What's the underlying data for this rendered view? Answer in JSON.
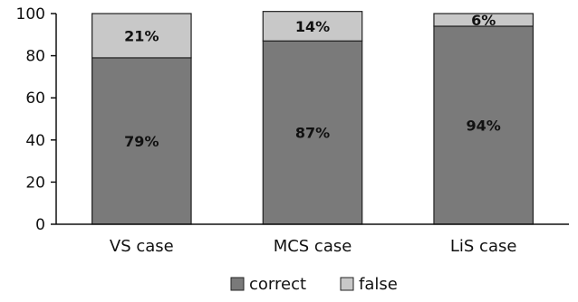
{
  "chart_data": {
    "type": "bar",
    "stacked": true,
    "categories": [
      "VS case",
      "MCS case",
      "LiS case"
    ],
    "series": [
      {
        "name": "correct",
        "values": [
          79,
          87,
          94
        ],
        "labels": [
          "79%",
          "87%",
          "94%"
        ],
        "color": "#7a7a7a"
      },
      {
        "name": "false",
        "values": [
          21,
          14,
          6
        ],
        "labels": [
          "21%",
          "14%",
          "6%"
        ],
        "color": "#c8c8c8"
      }
    ],
    "ylim": [
      0,
      100
    ],
    "yticks": [
      0,
      20,
      40,
      60,
      80,
      100
    ],
    "title": "",
    "xlabel": "",
    "ylabel": "",
    "grid": false,
    "legend_position": "bottom"
  }
}
